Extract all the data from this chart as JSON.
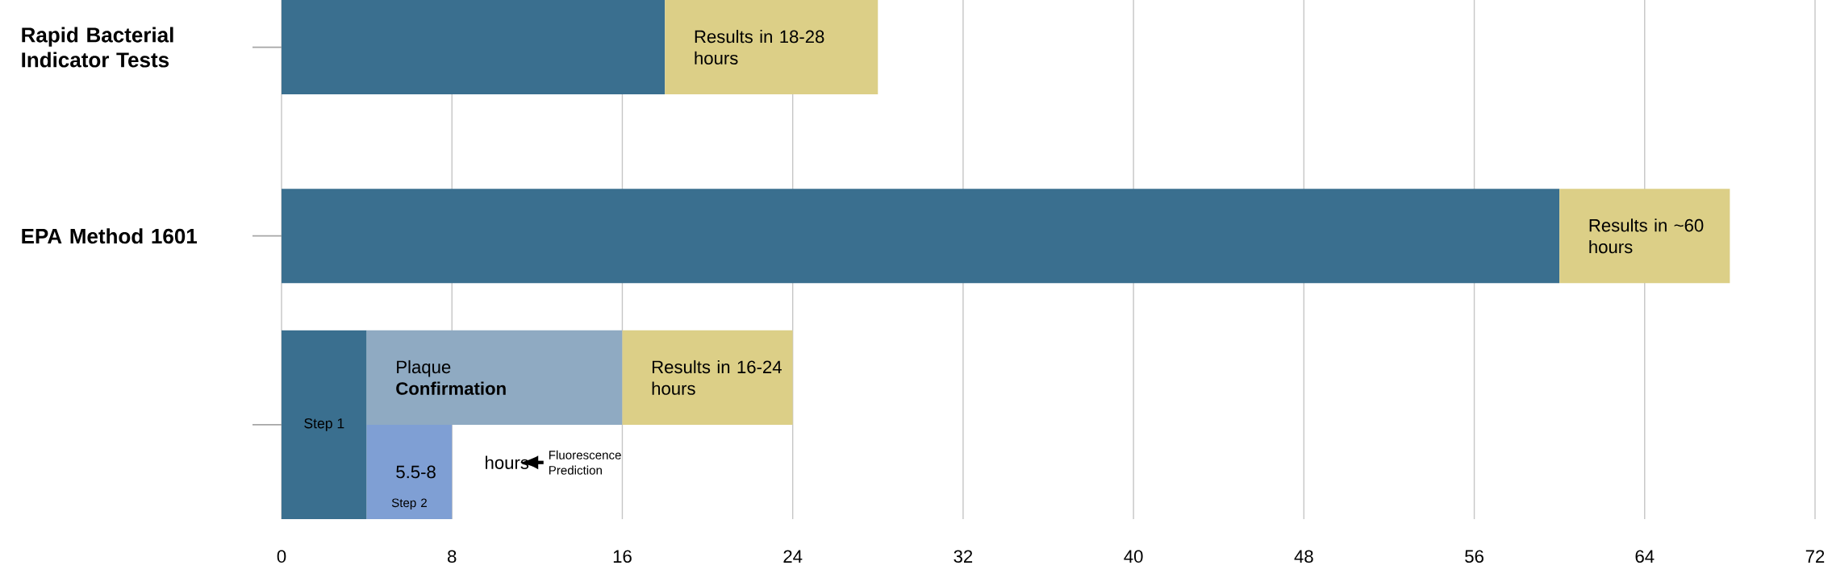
{
  "chart_data": {
    "type": "bar",
    "orientation": "horizontal",
    "categories": [
      "Rapid Bacterial Indicator Tests",
      "EPA Method 1601",
      null
    ],
    "series": [
      {
        "color": "#3a6f8f",
        "base": [
          0,
          0,
          0
        ],
        "values": [
          18,
          60,
          4
        ],
        "value_labels": [
          null,
          null,
          "Step 1"
        ]
      },
      {
        "color": "#8faac2",
        "base": [
          null,
          null,
          4
        ],
        "values": [
          null,
          null,
          12
        ],
        "value_labels": [
          null,
          null,
          "Plaque **Confirmation**"
        ]
      },
      {
        "color": "#7f9fd4",
        "base": [
          null,
          null,
          4
        ],
        "values": [
          null,
          null,
          4
        ],
        "value_labels": [
          null,
          null,
          "5.5-8"
        ]
      },
      {
        "color": "#dccf87",
        "base": [
          18,
          60,
          16
        ],
        "values": [
          10,
          8,
          8
        ]
      }
    ],
    "xlim": [
      0,
      72
    ],
    "xticks": [
      0,
      8,
      16,
      24,
      32,
      40,
      48,
      56,
      64,
      72
    ],
    "grid": "x",
    "annotations": [
      "Results in 18-28 hours",
      "Results in ~60 hours",
      "Results in 16-24 hours",
      "Step 2",
      "hours",
      "Fluorescence Prediction"
    ]
  }
}
